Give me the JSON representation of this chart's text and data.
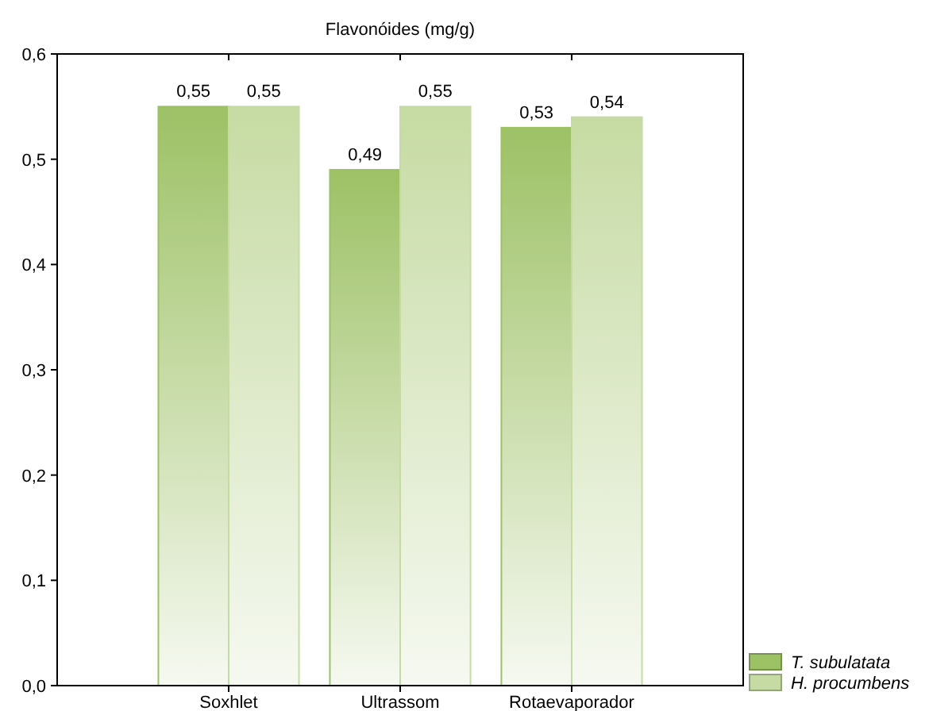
{
  "chart_data": {
    "type": "bar",
    "title": "Flavonóides (mg/g)",
    "categories": [
      "Soxhlet",
      "Ultrassom",
      "Rotaevaporador"
    ],
    "series": [
      {
        "name": "T. subulatata",
        "color": "#9dc165",
        "values": [
          0.55,
          0.49,
          0.53
        ],
        "value_labels": [
          "0,55",
          "0,49",
          "0,53"
        ]
      },
      {
        "name": "H. procumbens",
        "color": "#c6dba3",
        "values": [
          0.55,
          0.55,
          0.54
        ],
        "value_labels": [
          "0,55",
          "0,55",
          "0,54"
        ]
      }
    ],
    "ylim": [
      0,
      0.6
    ],
    "yticks": [
      {
        "value": 0,
        "label": "0,0"
      },
      {
        "value": 0.1,
        "label": "0,1"
      },
      {
        "value": 0.2,
        "label": "0,2"
      },
      {
        "value": 0.3,
        "label": "0,3"
      },
      {
        "value": 0.4,
        "label": "0,4"
      },
      {
        "value": 0.5,
        "label": "0,5"
      },
      {
        "value": 0.6,
        "label": "0,6"
      }
    ],
    "grid": false,
    "legend": "bottom right"
  }
}
